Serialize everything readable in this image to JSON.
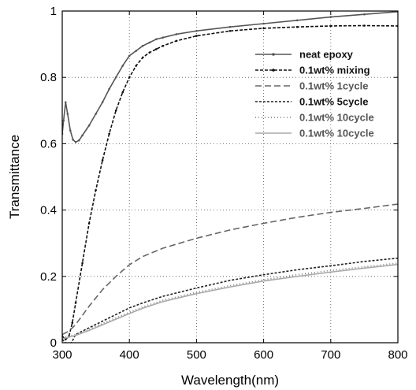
{
  "chart_data": {
    "type": "line",
    "title": "",
    "xlabel": "Wavelength(nm)",
    "ylabel": "Transmittance",
    "xlim": [
      300,
      800
    ],
    "ylim": [
      0,
      1
    ],
    "xticks": [
      300,
      400,
      500,
      600,
      700,
      800
    ],
    "yticks": [
      0,
      0.2,
      0.4,
      0.6,
      0.8,
      1
    ],
    "ytick_labels": [
      "0",
      "0.2",
      "0.4",
      "0.6",
      "0.8",
      "1"
    ],
    "grid": true,
    "grid_style": "dotted",
    "legend_position": "right",
    "series": [
      {
        "name": "neat epoxy",
        "color": "#555555",
        "dash": "",
        "marker": true,
        "x": [
          300,
          302,
          305,
          308,
          312,
          316,
          320,
          325,
          330,
          340,
          350,
          360,
          370,
          380,
          390,
          400,
          410,
          420,
          430,
          440,
          450,
          470,
          500,
          550,
          600,
          650,
          700,
          750,
          800
        ],
        "y": [
          0.63,
          0.67,
          0.725,
          0.69,
          0.64,
          0.612,
          0.605,
          0.61,
          0.625,
          0.655,
          0.69,
          0.725,
          0.765,
          0.8,
          0.835,
          0.865,
          0.88,
          0.895,
          0.905,
          0.915,
          0.92,
          0.93,
          0.94,
          0.952,
          0.962,
          0.972,
          0.982,
          0.99,
          0.998
        ]
      },
      {
        "name": "0.1wt% mixing",
        "color": "#111111",
        "dash": "4,2",
        "marker": true,
        "x": [
          300,
          305,
          310,
          315,
          320,
          330,
          340,
          350,
          360,
          370,
          380,
          390,
          400,
          410,
          420,
          430,
          440,
          450,
          470,
          500,
          550,
          600,
          650,
          700,
          750,
          800
        ],
        "y": [
          0.02,
          0.01,
          0.02,
          0.06,
          0.12,
          0.24,
          0.36,
          0.46,
          0.55,
          0.63,
          0.7,
          0.755,
          0.8,
          0.835,
          0.86,
          0.875,
          0.885,
          0.895,
          0.91,
          0.925,
          0.94,
          0.948,
          0.952,
          0.955,
          0.956,
          0.955
        ]
      },
      {
        "name": "0.1wt% 1cycle",
        "color": "#666666",
        "dash": "8,4",
        "marker": false,
        "x": [
          300,
          310,
          320,
          340,
          360,
          380,
          400,
          420,
          450,
          500,
          550,
          600,
          650,
          700,
          750,
          800
        ],
        "y": [
          0.025,
          0.035,
          0.055,
          0.11,
          0.16,
          0.2,
          0.235,
          0.26,
          0.285,
          0.315,
          0.34,
          0.36,
          0.378,
          0.393,
          0.405,
          0.418
        ]
      },
      {
        "name": "0.1wt% 5cycle",
        "color": "#222222",
        "dash": "3,2",
        "marker": false,
        "x": [
          300,
          305,
          310,
          315,
          320,
          330,
          340,
          360,
          380,
          400,
          420,
          450,
          500,
          550,
          600,
          650,
          700,
          750,
          800
        ],
        "y": [
          0.01,
          0.0,
          -0.01,
          0.005,
          0.025,
          0.035,
          0.045,
          0.065,
          0.085,
          0.105,
          0.12,
          0.14,
          0.165,
          0.188,
          0.205,
          0.22,
          0.232,
          0.245,
          0.255
        ]
      },
      {
        "name": "0.1wt% 10cycle",
        "color": "#777777",
        "dash": "1,3",
        "marker": false,
        "x": [
          300,
          310,
          320,
          340,
          360,
          380,
          400,
          420,
          450,
          500,
          550,
          600,
          650,
          700,
          750,
          800
        ],
        "y": [
          0.015,
          0.02,
          0.025,
          0.04,
          0.058,
          0.075,
          0.092,
          0.108,
          0.128,
          0.152,
          0.172,
          0.19,
          0.205,
          0.218,
          0.229,
          0.24
        ]
      },
      {
        "name": "0.1wt% 10cycle",
        "color": "#aaaaaa",
        "dash": "",
        "marker": false,
        "x": [
          300,
          310,
          320,
          340,
          360,
          380,
          400,
          420,
          450,
          500,
          550,
          600,
          650,
          700,
          750,
          800
        ],
        "y": [
          0.012,
          0.017,
          0.022,
          0.037,
          0.054,
          0.071,
          0.088,
          0.104,
          0.124,
          0.148,
          0.168,
          0.186,
          0.2,
          0.213,
          0.225,
          0.236
        ]
      }
    ]
  }
}
